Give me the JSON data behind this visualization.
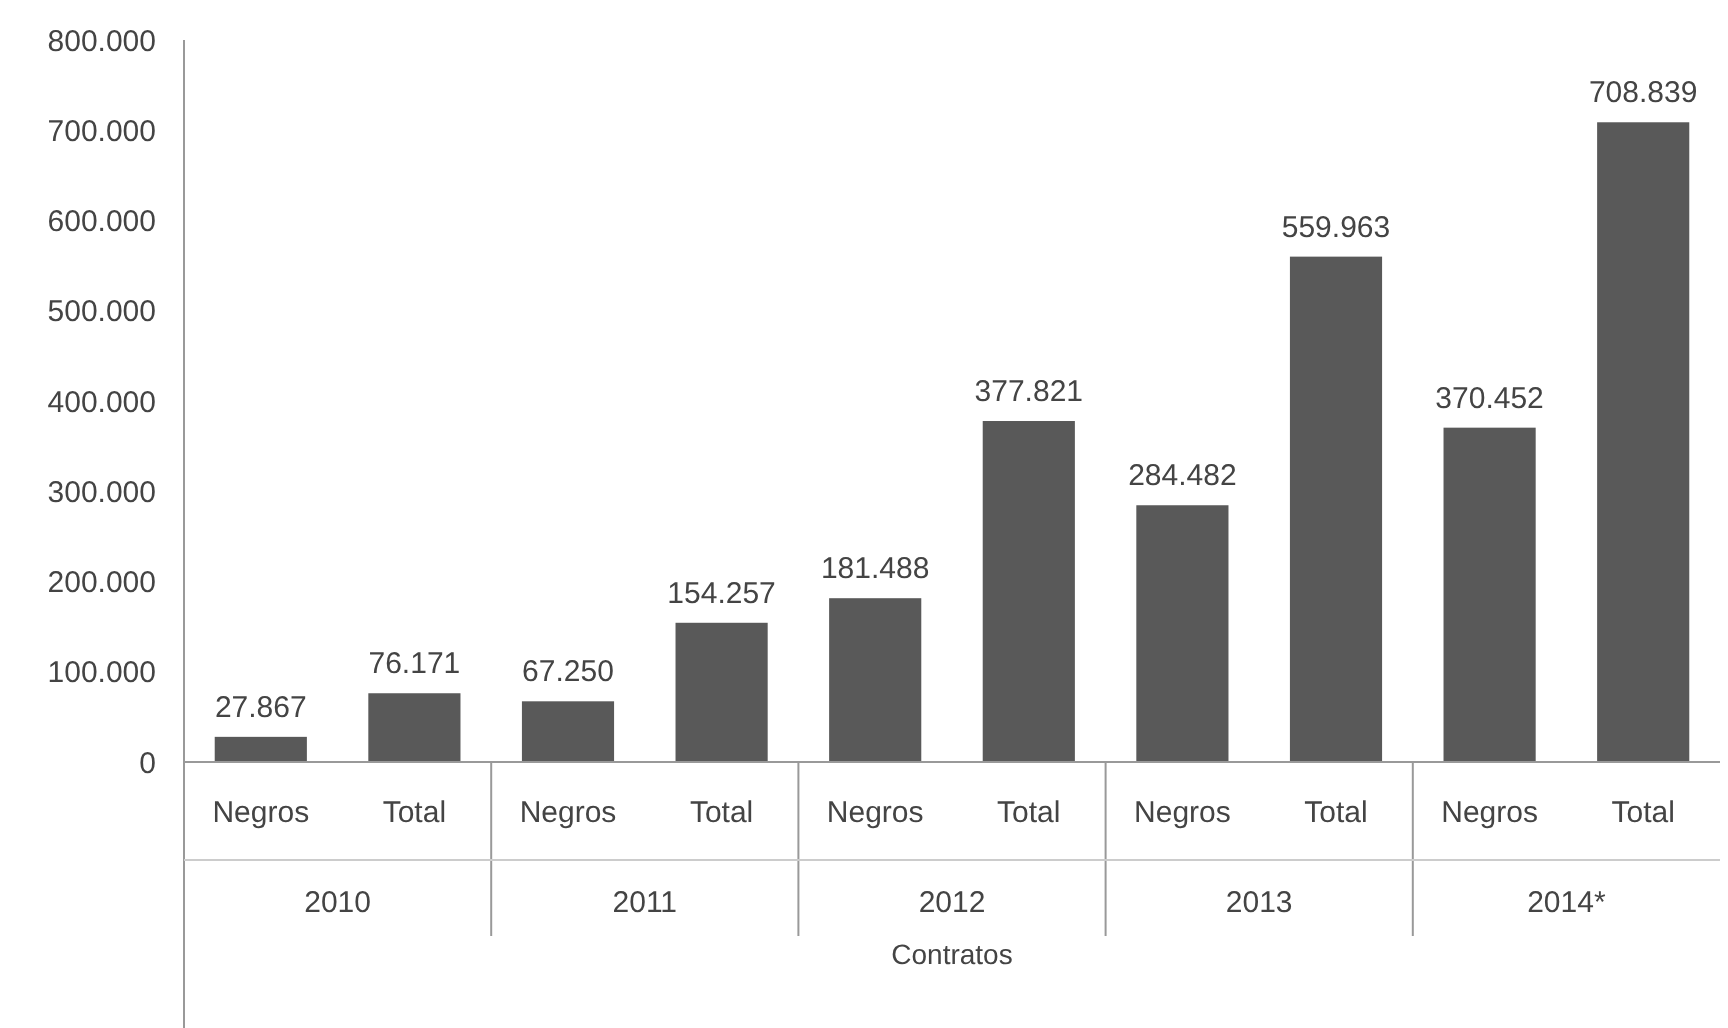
{
  "chart_data": {
    "type": "bar",
    "xlabel": "Contratos",
    "categories": [
      "Negros",
      "Total",
      "Negros",
      "Total",
      "Negros",
      "Total",
      "Negros",
      "Total",
      "Negros",
      "Total"
    ],
    "values": [
      27867,
      76171,
      67250,
      154257,
      181488,
      377821,
      284482,
      559963,
      370452,
      708839
    ],
    "value_labels": [
      "27.867",
      "76.171",
      "67.250",
      "154.257",
      "181.488",
      "377.821",
      "284.482",
      "559.963",
      "370.452",
      "708.839"
    ],
    "color": "#595959",
    "annotations": [
      "2010",
      "2011",
      "2012",
      "2013",
      "2014*"
    ],
    "ylim": [
      0,
      800000
    ],
    "yticks": [
      {
        "value": 0,
        "label": "0"
      },
      {
        "value": 100000,
        "label": "100.000"
      },
      {
        "value": 200000,
        "label": "200.000"
      },
      {
        "value": 300000,
        "label": "300.000"
      },
      {
        "value": 400000,
        "label": "400.000"
      },
      {
        "value": 500000,
        "label": "500.000"
      },
      {
        "value": 600000,
        "label": "600.000"
      },
      {
        "value": 700000,
        "label": "700.000"
      },
      {
        "value": 800000,
        "label": "800.000"
      }
    ],
    "grid": false
  }
}
